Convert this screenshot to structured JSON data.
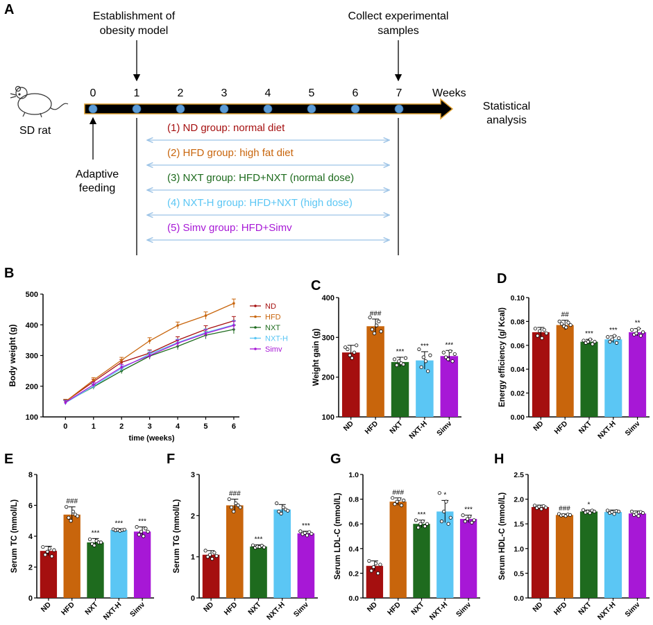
{
  "colors": {
    "ND": "#a50f0f",
    "HFD": "#c8650c",
    "NXT": "#1e6b1e",
    "NXT-H": "#5bc6f4",
    "Simv": "#a718d6",
    "timeline_node": "#5b9bd5",
    "timeline_outline": "#e0a030",
    "bracket_arrow": "#9cc3e6"
  },
  "panel_a": {
    "letter": "A",
    "rat_label": "SD rat",
    "rat_icon": "rat-icon",
    "top_left_note": [
      "Establishment of",
      "obesity model"
    ],
    "top_right_note": [
      "Collect experimental",
      "samples"
    ],
    "week_ticks": [
      "0",
      "1",
      "2",
      "3",
      "4",
      "5",
      "6",
      "7"
    ],
    "weeks_label": "Weeks",
    "end_note": [
      "Statistical",
      "analysis"
    ],
    "bottom_note": [
      "Adaptive",
      "feeding"
    ],
    "groups": [
      {
        "text": "(1) ND group: normal diet",
        "color": "#a50f0f"
      },
      {
        "text": "(2) HFD group: high fat diet",
        "color": "#c8650c"
      },
      {
        "text": "(3) NXT group: HFD+NXT (normal dose)",
        "color": "#1e6b1e"
      },
      {
        "text": "(4) NXT-H group: HFD+NXT (high dose)",
        "color": "#5bc6f4"
      },
      {
        "text": "(5) Simv group: HFD+Simv",
        "color": "#a718d6"
      }
    ]
  },
  "chart_data": [
    {
      "panel": "B",
      "type": "line",
      "xlabel": "time (weeks)",
      "ylabel": "Body weight (g)",
      "x": [
        0,
        1,
        2,
        3,
        4,
        5,
        6
      ],
      "x_ticks": [
        "0",
        "1",
        "2",
        "3",
        "4",
        "5",
        "6"
      ],
      "ylim": [
        100,
        500
      ],
      "y_ticks": [
        "100",
        "200",
        "300",
        "400",
        "500"
      ],
      "legend_position": "right",
      "series": [
        {
          "name": "ND",
          "values": [
            150,
            215,
            278,
            308,
            350,
            385,
            413
          ],
          "err": [
            7,
            8,
            9,
            10,
            11,
            12,
            14
          ]
        },
        {
          "name": "HFD",
          "values": [
            150,
            220,
            285,
            348,
            398,
            430,
            470
          ],
          "err": [
            7,
            8,
            9,
            10,
            11,
            12,
            14
          ]
        },
        {
          "name": "NXT",
          "values": [
            148,
            198,
            250,
            298,
            330,
            366,
            385
          ],
          "err": [
            7,
            8,
            9,
            10,
            11,
            12,
            14
          ]
        },
        {
          "name": "NXT-H",
          "values": [
            146,
            200,
            258,
            305,
            342,
            375,
            400
          ],
          "err": [
            7,
            8,
            9,
            10,
            11,
            12,
            14
          ]
        },
        {
          "name": "Simv",
          "values": [
            147,
            205,
            262,
            300,
            340,
            372,
            398
          ],
          "err": [
            7,
            8,
            9,
            10,
            11,
            12,
            14
          ]
        }
      ]
    },
    {
      "panel": "C",
      "type": "bar",
      "ylabel": "Weight gain (g)",
      "categories": [
        "ND",
        "HFD",
        "NXT",
        "NXT-H",
        "Simv"
      ],
      "ylim": [
        100,
        400
      ],
      "y_ticks": [
        "100",
        "200",
        "300",
        "400"
      ],
      "values": [
        262,
        328,
        238,
        242,
        253
      ],
      "err": [
        18,
        18,
        12,
        22,
        14
      ],
      "sig": [
        "",
        "###",
        "***",
        "***",
        "***"
      ],
      "points": [
        [
          275,
          270,
          255,
          248,
          262,
          280
        ],
        [
          350,
          320,
          310,
          330,
          340,
          315
        ],
        [
          245,
          230,
          240,
          235,
          232,
          248
        ],
        [
          270,
          225,
          250,
          240,
          215,
          255
        ],
        [
          262,
          250,
          245,
          265,
          240,
          258
        ]
      ]
    },
    {
      "panel": "D",
      "type": "bar",
      "ylabel": "Energy efficiency (g/ Kcal)",
      "categories": [
        "ND",
        "HFD",
        "NXT",
        "NXT-H",
        "Simv"
      ],
      "ylim": [
        0,
        0.1
      ],
      "y_ticks": [
        "0.00",
        "0.02",
        "0.04",
        "0.06",
        "0.08",
        "0.10"
      ],
      "values": [
        0.071,
        0.077,
        0.063,
        0.065,
        0.071
      ],
      "err": [
        0.004,
        0.004,
        0.002,
        0.003,
        0.003
      ],
      "sig": [
        "",
        "##",
        "***",
        "***",
        "**"
      ],
      "points": [
        [
          0.074,
          0.068,
          0.072,
          0.066,
          0.073,
          0.07
        ],
        [
          0.08,
          0.078,
          0.076,
          0.075,
          0.079,
          0.077
        ],
        [
          0.064,
          0.062,
          0.063,
          0.065,
          0.061,
          0.063
        ],
        [
          0.067,
          0.063,
          0.065,
          0.068,
          0.062,
          0.066
        ],
        [
          0.073,
          0.069,
          0.07,
          0.074,
          0.068,
          0.071
        ]
      ]
    },
    {
      "panel": "E",
      "type": "bar",
      "ylabel": "Serum TC (mmol/L)",
      "categories": [
        "ND",
        "HFD",
        "NXT",
        "NXT-H",
        "Simv"
      ],
      "ylim": [
        0,
        8
      ],
      "y_ticks": [
        "0",
        "2",
        "4",
        "6",
        "8"
      ],
      "values": [
        3.05,
        5.4,
        3.6,
        4.4,
        4.3
      ],
      "err": [
        0.3,
        0.5,
        0.25,
        0.08,
        0.3
      ],
      "sig": [
        "",
        "###",
        "***",
        "***",
        "***"
      ],
      "points": [
        [
          3.3,
          2.8,
          3.0,
          3.2,
          2.7,
          3.1
        ],
        [
          5.9,
          5.2,
          5.0,
          5.6,
          5.4,
          5.3
        ],
        [
          3.8,
          3.5,
          3.4,
          3.7,
          3.6,
          3.6
        ],
        [
          4.45,
          4.38,
          4.42,
          4.35,
          4.4,
          4.43
        ],
        [
          4.6,
          4.1,
          4.3,
          4.0,
          4.5,
          4.3
        ]
      ]
    },
    {
      "panel": "F",
      "type": "bar",
      "ylabel": "Serum TG (mmol/L)",
      "categories": [
        "ND",
        "HFD",
        "NXT",
        "NXT-H",
        "Simv"
      ],
      "ylim": [
        0,
        3
      ],
      "y_ticks": [
        "0",
        "1",
        "2",
        "3"
      ],
      "values": [
        1.05,
        2.25,
        1.25,
        2.15,
        1.57
      ],
      "err": [
        0.1,
        0.15,
        0.04,
        0.12,
        0.05
      ],
      "sig": [
        "",
        "###",
        "***",
        "",
        "***"
      ],
      "points": [
        [
          1.15,
          1.0,
          1.05,
          0.95,
          1.1,
          1.02
        ],
        [
          2.4,
          2.2,
          2.1,
          2.3,
          2.25,
          2.2
        ],
        [
          1.28,
          1.22,
          1.25,
          1.24,
          1.27,
          1.23
        ],
        [
          2.3,
          2.1,
          2.05,
          2.2,
          2.15,
          2.12
        ],
        [
          1.62,
          1.55,
          1.58,
          1.52,
          1.6,
          1.56
        ]
      ]
    },
    {
      "panel": "G",
      "type": "bar",
      "ylabel": "Serum LDL-C (mmol/L)",
      "categories": [
        "ND",
        "HFD",
        "NXT",
        "NXT-H",
        "Simv"
      ],
      "ylim": [
        0,
        1.0
      ],
      "y_ticks": [
        "0.0",
        "0.2",
        "0.4",
        "0.6",
        "0.8",
        "1.0"
      ],
      "values": [
        0.26,
        0.78,
        0.6,
        0.7,
        0.64
      ],
      "err": [
        0.04,
        0.03,
        0.03,
        0.09,
        0.03
      ],
      "sig": [
        "",
        "###",
        "***",
        "*",
        "***"
      ],
      "points": [
        [
          0.3,
          0.22,
          0.25,
          0.28,
          0.2,
          0.27
        ],
        [
          0.81,
          0.76,
          0.78,
          0.8,
          0.75,
          0.79
        ],
        [
          0.63,
          0.57,
          0.6,
          0.62,
          0.58,
          0.6
        ],
        [
          0.85,
          0.62,
          0.7,
          0.78,
          0.6,
          0.65
        ],
        [
          0.67,
          0.62,
          0.64,
          0.66,
          0.61,
          0.63
        ]
      ]
    },
    {
      "panel": "H",
      "type": "bar",
      "ylabel": "Serum HDL-C (mmol/L)",
      "categories": [
        "ND",
        "HFD",
        "NXT",
        "NXT-H",
        "Simv"
      ],
      "ylim": [
        0,
        2.5
      ],
      "y_ticks": [
        "0.0",
        "0.5",
        "1.0",
        "1.5",
        "2.0",
        "2.5"
      ],
      "values": [
        1.84,
        1.68,
        1.75,
        1.74,
        1.71
      ],
      "err": [
        0.04,
        0.02,
        0.03,
        0.04,
        0.05
      ],
      "sig": [
        "",
        "###",
        "*",
        "",
        ""
      ],
      "points": [
        [
          1.87,
          1.82,
          1.85,
          1.8,
          1.86,
          1.83
        ],
        [
          1.7,
          1.67,
          1.68,
          1.66,
          1.69,
          1.68
        ],
        [
          1.78,
          1.73,
          1.75,
          1.72,
          1.77,
          1.75
        ],
        [
          1.77,
          1.72,
          1.74,
          1.7,
          1.76,
          1.75
        ],
        [
          1.75,
          1.68,
          1.7,
          1.66,
          1.74,
          1.72
        ]
      ]
    }
  ]
}
